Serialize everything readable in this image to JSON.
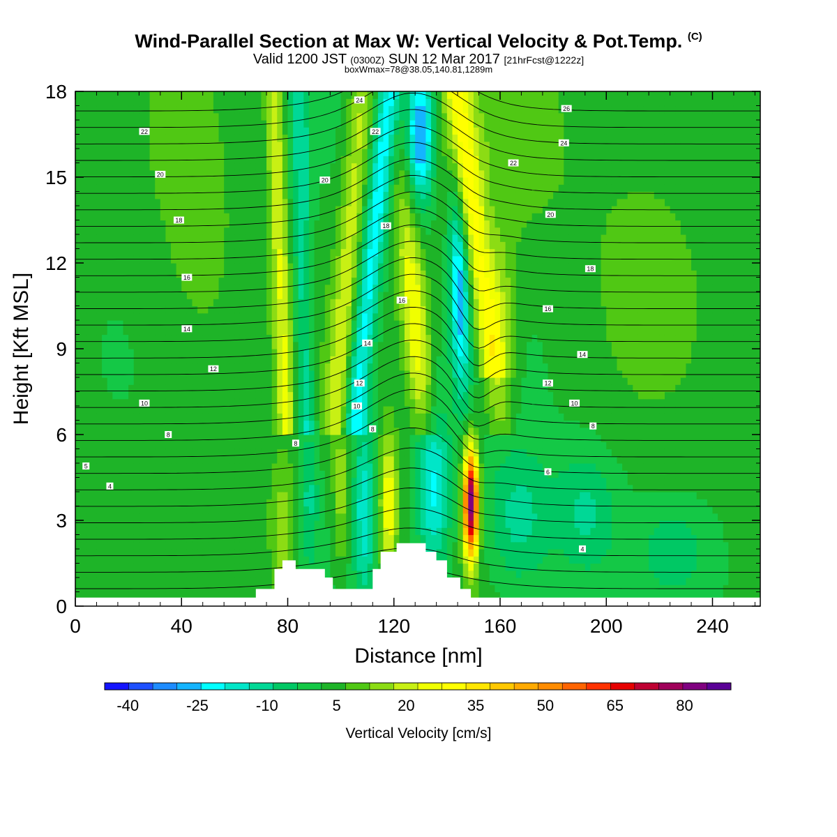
{
  "header": {
    "title": "Wind-Parallel Section at Max W: Vertical Velocity & Pot.Temp.",
    "title_unit": "(C)",
    "valid_prefix": "Valid 1200 JST",
    "valid_utc": "(0300Z)",
    "valid_date": "SUN 12 Mar 2017",
    "forecast": "[21hrFcst@1222z]",
    "boxwmax": "boxWmax=78@38.05,140.81,1289m"
  },
  "chart_data": {
    "type": "heatmap",
    "xlabel": "Distance [nm]",
    "ylabel": "Height [Kft MSL]",
    "xlim": [
      0,
      258
    ],
    "ylim": [
      0,
      18
    ],
    "x_ticks": [
      0,
      40,
      80,
      120,
      160,
      200,
      240
    ],
    "y_ticks": [
      0,
      3,
      6,
      9,
      12,
      15,
      18
    ],
    "colorbar": {
      "label": "Vertical Velocity [cm/s]",
      "range": [
        -45,
        90
      ],
      "step": 5,
      "tick_labels": [
        -40,
        -25,
        -10,
        5,
        20,
        35,
        50,
        65,
        80
      ],
      "colors": [
        "#1414ff",
        "#1e50ff",
        "#1e8cff",
        "#14b4ff",
        "#00ffff",
        "#00e6c8",
        "#00d896",
        "#00c864",
        "#14c846",
        "#1eb428",
        "#50c814",
        "#8cdc14",
        "#c8f014",
        "#f0ff00",
        "#ffff00",
        "#ffe600",
        "#ffc800",
        "#ffaa00",
        "#ff8c00",
        "#ff6400",
        "#ff3200",
        "#e60000",
        "#be0032",
        "#a0005a",
        "#800080",
        "#5a0096"
      ]
    },
    "upward_motion_bands": [
      {
        "x": 78,
        "w_cm_s": 20
      },
      {
        "x": 108,
        "w_cm_s": 20
      },
      {
        "x": 124,
        "w_cm_s": 25
      },
      {
        "x": 149,
        "w_cm_s": 78
      }
    ],
    "downward_motion_bands": [
      {
        "x": 86,
        "w_cm_s": -10
      },
      {
        "x": 110,
        "w_cm_s": -20
      },
      {
        "x": 130,
        "w_cm_s": -35
      },
      {
        "x": 145,
        "w_cm_s": -30
      }
    ],
    "theta_contours": {
      "unit": "C",
      "labels": [
        {
          "x": 4,
          "y": 4.9,
          "text": "5"
        },
        {
          "x": 13,
          "y": 4.2,
          "text": "4"
        },
        {
          "x": 35,
          "y": 6.0,
          "text": "8"
        },
        {
          "x": 26,
          "y": 7.1,
          "text": "10"
        },
        {
          "x": 52,
          "y": 8.3,
          "text": "12"
        },
        {
          "x": 42,
          "y": 9.7,
          "text": "14"
        },
        {
          "x": 42,
          "y": 11.5,
          "text": "16"
        },
        {
          "x": 39,
          "y": 13.5,
          "text": "18"
        },
        {
          "x": 32,
          "y": 15.1,
          "text": "20"
        },
        {
          "x": 26,
          "y": 16.6,
          "text": "22"
        },
        {
          "x": 83,
          "y": 5.7,
          "text": "8"
        },
        {
          "x": 106,
          "y": 7.0,
          "text": "10"
        },
        {
          "x": 107,
          "y": 7.8,
          "text": "12"
        },
        {
          "x": 112,
          "y": 6.2,
          "text": "8"
        },
        {
          "x": 110,
          "y": 9.2,
          "text": "14"
        },
        {
          "x": 123,
          "y": 10.7,
          "text": "16"
        },
        {
          "x": 117,
          "y": 13.3,
          "text": "18"
        },
        {
          "x": 94,
          "y": 14.9,
          "text": "20"
        },
        {
          "x": 113,
          "y": 16.6,
          "text": "22"
        },
        {
          "x": 107,
          "y": 17.7,
          "text": "24"
        },
        {
          "x": 178,
          "y": 10.4,
          "text": "16"
        },
        {
          "x": 178,
          "y": 7.8,
          "text": "12"
        },
        {
          "x": 188,
          "y": 7.1,
          "text": "10"
        },
        {
          "x": 195,
          "y": 6.3,
          "text": "8"
        },
        {
          "x": 178,
          "y": 4.7,
          "text": "6"
        },
        {
          "x": 191,
          "y": 2.0,
          "text": "4"
        },
        {
          "x": 191,
          "y": 8.8,
          "text": "14"
        },
        {
          "x": 194,
          "y": 11.8,
          "text": "18"
        },
        {
          "x": 179,
          "y": 13.7,
          "text": "20"
        },
        {
          "x": 165,
          "y": 15.5,
          "text": "22"
        },
        {
          "x": 184,
          "y": 16.2,
          "text": "24"
        },
        {
          "x": 185,
          "y": 17.4,
          "text": "26"
        }
      ]
    },
    "terrain_kft": {
      "x": [
        0,
        68,
        71,
        75,
        78,
        80,
        83,
        88,
        94,
        97,
        100,
        106,
        112,
        115,
        121,
        128,
        132,
        136,
        140,
        145,
        149,
        258
      ],
      "y": [
        0.3,
        0.6,
        0.6,
        1.3,
        1.6,
        1.6,
        1.3,
        1.3,
        1.0,
        0.6,
        0.6,
        0.6,
        1.3,
        1.9,
        2.2,
        2.2,
        1.9,
        1.6,
        1.0,
        0.6,
        0.3,
        0.3
      ]
    }
  }
}
